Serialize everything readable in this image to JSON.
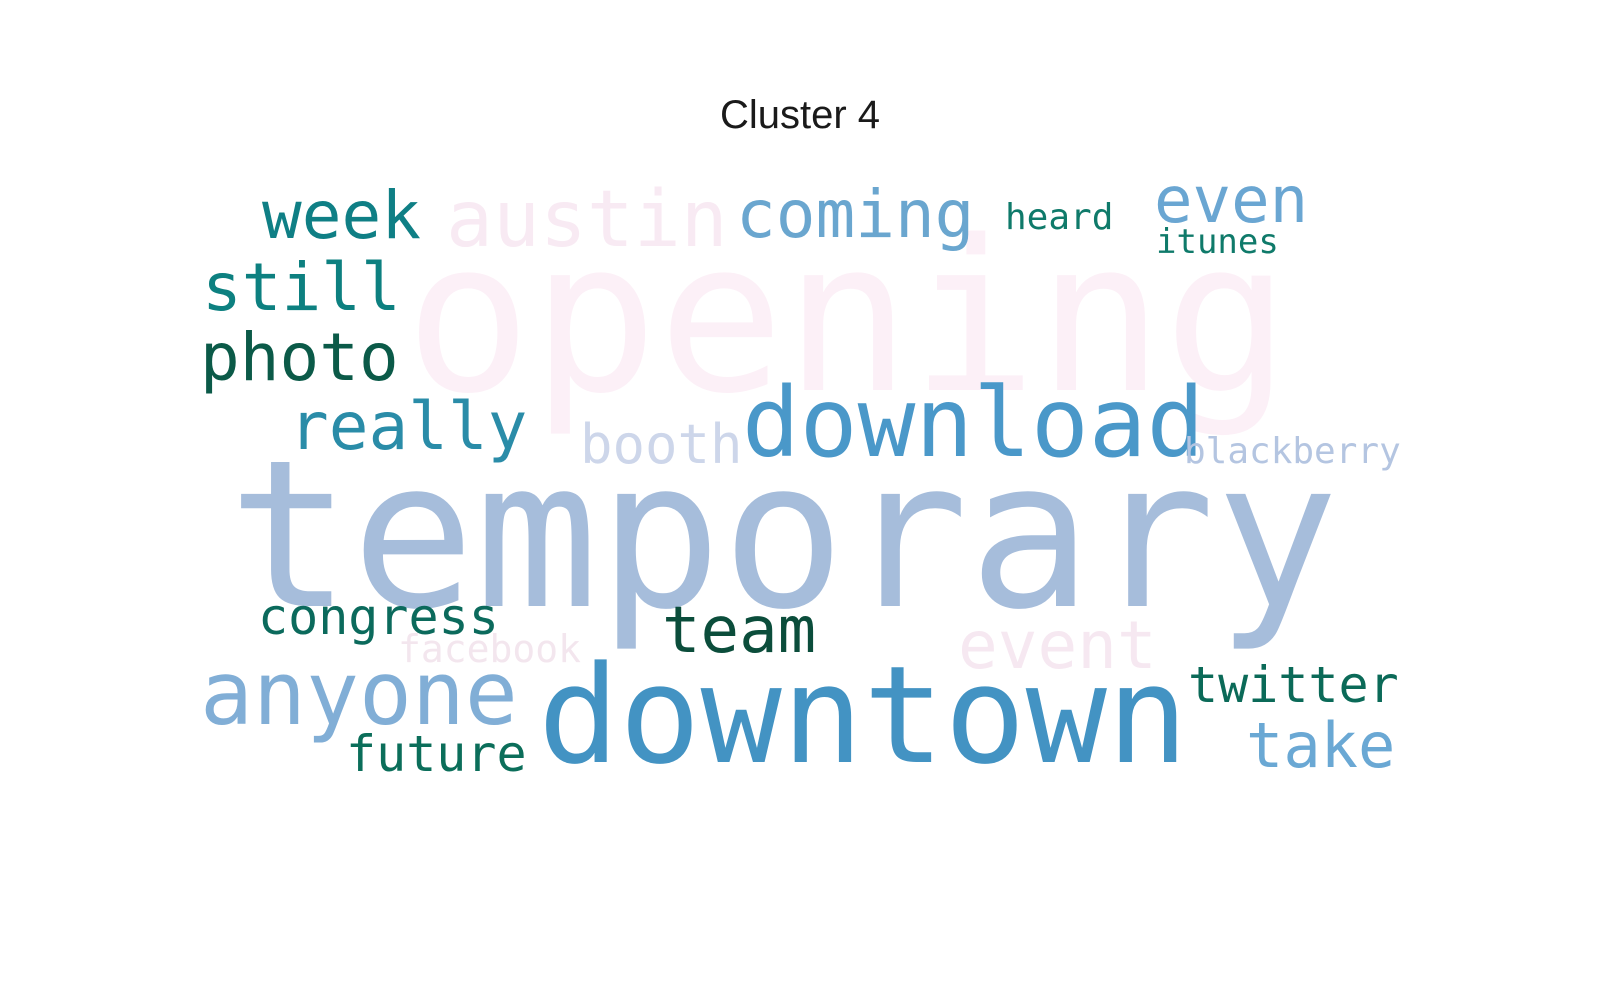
{
  "chart_data": {
    "type": "wordcloud",
    "title": "Cluster 4",
    "words": [
      {
        "text": "opening",
        "weight": 1.0,
        "color": "#fcf0f7"
      },
      {
        "text": "temporary",
        "weight": 0.98,
        "color": "#a6bddb"
      },
      {
        "text": "downtown",
        "weight": 0.66,
        "color": "#4393c3"
      },
      {
        "text": "download",
        "weight": 0.47,
        "color": "#4a98c9"
      },
      {
        "text": "anyone",
        "weight": 0.45,
        "color": "#81aed6"
      },
      {
        "text": "austin",
        "weight": 0.38,
        "color": "#f8eaf3"
      },
      {
        "text": "event",
        "weight": 0.34,
        "color": "#f6e8f1"
      },
      {
        "text": "team",
        "weight": 0.33,
        "color": "#0b4d3b"
      },
      {
        "text": "week",
        "weight": 0.33,
        "color": "#0f7f85"
      },
      {
        "text": "coming",
        "weight": 0.33,
        "color": "#6aa6cf"
      },
      {
        "text": "still",
        "weight": 0.32,
        "color": "#0d8080"
      },
      {
        "text": "photo",
        "weight": 0.32,
        "color": "#0b5a48"
      },
      {
        "text": "really",
        "weight": 0.32,
        "color": "#2a8ca8"
      },
      {
        "text": "even",
        "weight": 0.32,
        "color": "#6aa6d2"
      },
      {
        "text": "take",
        "weight": 0.31,
        "color": "#6aa8d4"
      },
      {
        "text": "booth",
        "weight": 0.27,
        "color": "#cdd6ea"
      },
      {
        "text": "congress",
        "weight": 0.25,
        "color": "#0b6a5c"
      },
      {
        "text": "twitter",
        "weight": 0.25,
        "color": "#0b6a58"
      },
      {
        "text": "future",
        "weight": 0.25,
        "color": "#0b6e5a"
      },
      {
        "text": "facebook",
        "weight": 0.2,
        "color": "#f3e6ee"
      },
      {
        "text": "blackberry",
        "weight": 0.19,
        "color": "#b4c5e1"
      },
      {
        "text": "heard",
        "weight": 0.18,
        "color": "#0f7a6a"
      },
      {
        "text": "itunes",
        "weight": 0.18,
        "color": "#0f7a6a"
      }
    ]
  }
}
